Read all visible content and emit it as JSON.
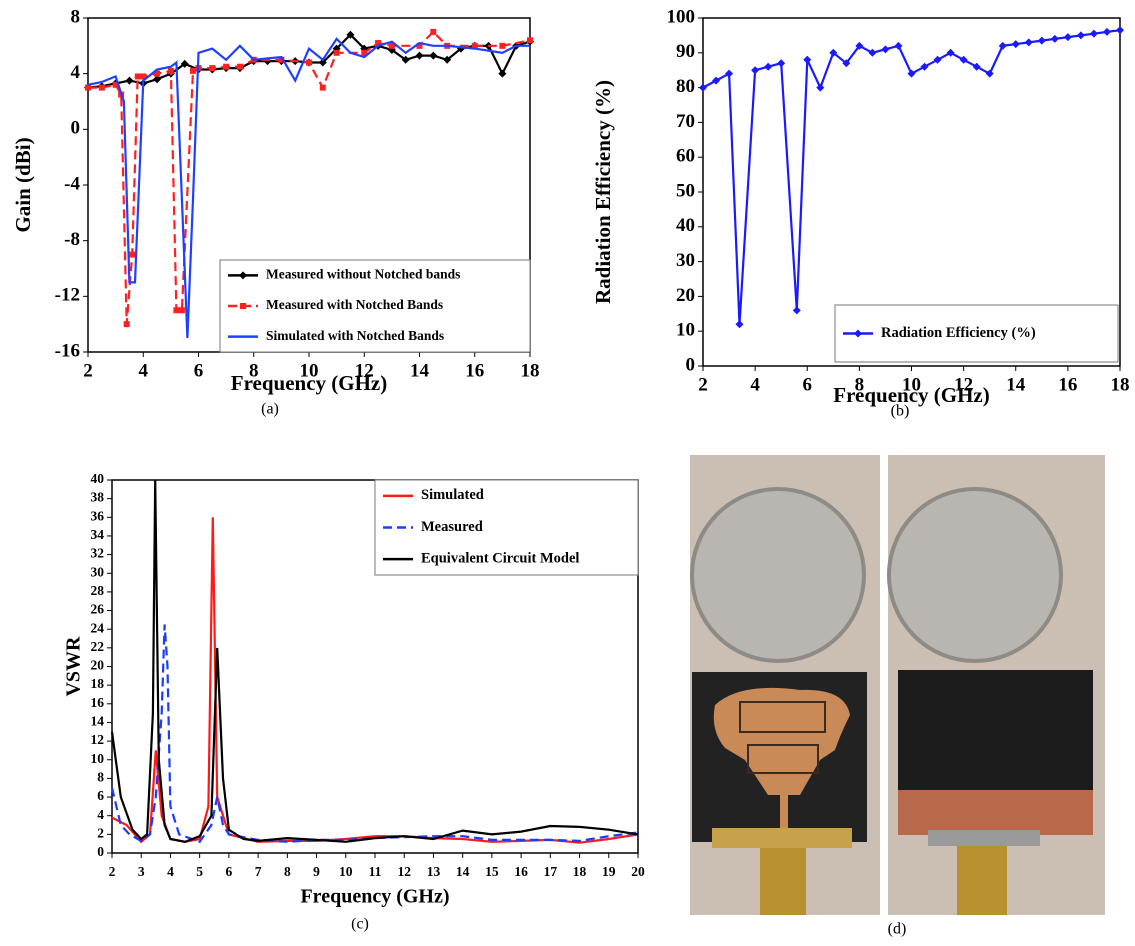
{
  "chart_data": [
    {
      "type": "line",
      "xlabel": "Frequency (GHz)",
      "ylabel": "Gain (dBi)",
      "caption": "(a)",
      "xlim": [
        2,
        18
      ],
      "xticks": [
        2,
        4,
        6,
        8,
        10,
        12,
        14,
        16,
        18
      ],
      "ylim": [
        -16,
        8
      ],
      "yticks": [
        -16,
        -12,
        -8,
        -4,
        0,
        4,
        8
      ],
      "legend": "lower right",
      "series": [
        {
          "name": "Measured without Notched bands",
          "color": "#000000",
          "dash": "solid",
          "marker": "diamond",
          "x": [
            2,
            2.5,
            3,
            3.5,
            4,
            4.5,
            5,
            5.5,
            6,
            6.5,
            7,
            7.5,
            8,
            8.5,
            9,
            9.5,
            10,
            10.5,
            11,
            11.5,
            12,
            12.5,
            13,
            13.5,
            14,
            14.5,
            15,
            15.5,
            16,
            16.5,
            17,
            17.5,
            18
          ],
          "values": [
            3,
            3.1,
            3.3,
            3.5,
            3.3,
            3.6,
            4,
            4.7,
            4.3,
            4.3,
            4.4,
            4.4,
            4.9,
            4.9,
            4.9,
            4.9,
            4.8,
            4.8,
            5.8,
            6.8,
            5.8,
            6,
            5.7,
            5,
            5.3,
            5.3,
            5,
            5.8,
            6,
            6,
            4,
            6,
            6.3
          ]
        },
        {
          "name": "Measured with Notched Bands",
          "color": "#ff2020",
          "dash": "dashed",
          "marker": "square",
          "x": [
            2,
            2.5,
            3,
            3.2,
            3.4,
            3.6,
            3.8,
            4,
            4.5,
            5,
            5.2,
            5.4,
            5.8,
            6,
            6.5,
            7,
            7.5,
            8,
            9,
            10,
            10.5,
            11,
            12,
            12.5,
            13,
            14,
            14.5,
            15,
            16,
            17,
            18
          ],
          "values": [
            3,
            3,
            3.2,
            2.5,
            -14,
            -9,
            3.8,
            3.8,
            4,
            4.2,
            -13,
            -13,
            4.2,
            4.4,
            4.4,
            4.5,
            4.5,
            5,
            5,
            4.8,
            3,
            5.5,
            5.5,
            6.2,
            6,
            6,
            7,
            6,
            6,
            6,
            6.4
          ]
        },
        {
          "name": "Simulated with Notched Bands",
          "color": "#2040ff",
          "dash": "solid",
          "marker": "none",
          "x": [
            2,
            2.5,
            3,
            3.3,
            3.5,
            3.7,
            4,
            4.5,
            5,
            5.2,
            5.4,
            5.6,
            5.8,
            6,
            6.5,
            7,
            7.5,
            8,
            9,
            9.5,
            10,
            10.5,
            11,
            11.5,
            12,
            12.5,
            13,
            13.5,
            14,
            14.5,
            15,
            16,
            17,
            17.5,
            18
          ],
          "values": [
            3.2,
            3.4,
            3.8,
            2,
            -11,
            -11,
            3.5,
            4.3,
            4.5,
            4.8,
            -5,
            -15,
            -5,
            5.5,
            5.8,
            5,
            6,
            5,
            5.2,
            3.5,
            5.8,
            5,
            6.5,
            5.5,
            5.2,
            6,
            6.3,
            5.5,
            6.2,
            6,
            6,
            5.8,
            5.5,
            6,
            6
          ]
        }
      ]
    },
    {
      "type": "line",
      "xlabel": "Frequency (GHz)",
      "ylabel": "Radiation Efficiency (%)",
      "caption": "(b)",
      "xlim": [
        2,
        18
      ],
      "xticks": [
        2,
        4,
        6,
        8,
        10,
        12,
        14,
        16,
        18
      ],
      "ylim": [
        0,
        100
      ],
      "yticks": [
        0,
        10,
        20,
        30,
        40,
        50,
        60,
        70,
        80,
        90,
        100
      ],
      "legend": "lower right",
      "series": [
        {
          "name": "Radiation Efficiency (%)",
          "color": "#1a1aff",
          "dash": "solid",
          "marker": "diamond",
          "x": [
            2,
            2.5,
            3,
            3.4,
            4,
            4.5,
            5,
            5.6,
            6,
            6.5,
            7,
            7.5,
            8,
            8.5,
            9,
            9.5,
            10,
            10.5,
            11,
            11.5,
            12,
            12.5,
            13,
            13.5,
            14,
            14.5,
            15,
            15.5,
            16,
            16.5,
            17,
            17.5,
            18
          ],
          "values": [
            80,
            82,
            84,
            12,
            85,
            86,
            87,
            16,
            88,
            80,
            90,
            87,
            92,
            90,
            91,
            92,
            84,
            86,
            88,
            90,
            88,
            86,
            84,
            92,
            92.5,
            93,
            93.5,
            94,
            94.5,
            95,
            95.5,
            96,
            96.5
          ]
        }
      ]
    },
    {
      "type": "line",
      "xlabel": "Frequency (GHz)",
      "ylabel": "VSWR",
      "caption": "(c)",
      "xlim": [
        2,
        20
      ],
      "xticks": [
        2,
        3,
        4,
        5,
        6,
        7,
        8,
        9,
        10,
        11,
        12,
        13,
        14,
        15,
        16,
        17,
        18,
        19,
        20
      ],
      "ylim": [
        0,
        40
      ],
      "yticks": [
        0,
        2,
        4,
        6,
        8,
        10,
        12,
        14,
        16,
        18,
        20,
        22,
        24,
        26,
        28,
        30,
        32,
        34,
        36,
        38,
        40
      ],
      "legend": "upper right",
      "series": [
        {
          "name": "Simulated",
          "color": "#ff1a1a",
          "dash": "solid",
          "marker": "none",
          "x": [
            2,
            2.5,
            3,
            3.3,
            3.5,
            3.7,
            4,
            4.5,
            5,
            5.3,
            5.45,
            5.6,
            6,
            7,
            8,
            9,
            10,
            11,
            12,
            13,
            14,
            15,
            16,
            17,
            18,
            19,
            20
          ],
          "values": [
            3.8,
            3,
            1.2,
            2,
            11,
            4,
            1.5,
            1.2,
            1.5,
            5,
            36,
            6,
            2,
            1.2,
            1.3,
            1.3,
            1.5,
            1.8,
            1.8,
            1.6,
            1.5,
            1.2,
            1.3,
            1.4,
            1.1,
            1.5,
            2
          ]
        },
        {
          "name": "Measured",
          "color": "#1a3cff",
          "dash": "dashed",
          "marker": "none",
          "x": [
            2,
            2.3,
            2.6,
            3,
            3.3,
            3.5,
            3.7,
            3.8,
            3.9,
            4,
            4.3,
            5,
            5.4,
            5.6,
            5.8,
            6,
            7,
            8,
            9,
            10,
            11,
            12,
            13,
            14,
            15,
            16,
            17,
            18,
            19,
            20
          ],
          "values": [
            7,
            3,
            2,
            1.3,
            2,
            6,
            15,
            24.5,
            20,
            5,
            2,
            1.2,
            3,
            6,
            3,
            2,
            1.4,
            1.2,
            1.4,
            1.4,
            1.6,
            1.7,
            1.8,
            1.8,
            1.4,
            1.4,
            1.4,
            1.3,
            1.8,
            2.2
          ]
        },
        {
          "name": "Equivalent Circuit Model",
          "color": "#000000",
          "dash": "solid",
          "marker": "none",
          "x": [
            2,
            2.3,
            2.7,
            3,
            3.2,
            3.4,
            3.48,
            3.6,
            3.8,
            4,
            4.5,
            5,
            5.4,
            5.6,
            5.8,
            6,
            6.5,
            7,
            8,
            9,
            10,
            11,
            12,
            13,
            14,
            15,
            16,
            17,
            18,
            19,
            20
          ],
          "values": [
            13,
            6,
            2.5,
            1.5,
            2,
            15,
            40,
            10,
            3,
            1.5,
            1.2,
            1.8,
            4,
            22,
            8,
            2.5,
            1.5,
            1.3,
            1.6,
            1.4,
            1.2,
            1.6,
            1.8,
            1.5,
            2.4,
            2,
            2.3,
            2.9,
            2.8,
            2.5,
            2
          ]
        }
      ]
    }
  ],
  "photo": {
    "caption": "(d)"
  }
}
